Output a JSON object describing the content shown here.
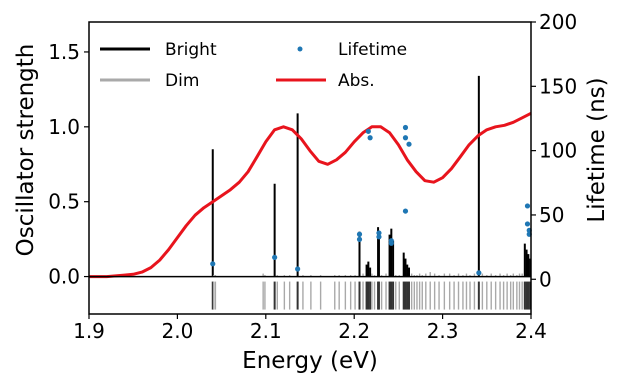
{
  "chart_data": {
    "type": "line",
    "xlabel": "Energy (eV)",
    "ylabel_left": "Oscillator strength",
    "ylabel_right": "Lifetime (ns)",
    "xlim": [
      1.9,
      2.4
    ],
    "ylim_left": [
      -0.25,
      1.7
    ],
    "ylim_right": [
      -27,
      200
    ],
    "xticks": [
      "1.9",
      "2.0",
      "2.1",
      "2.2",
      "2.3",
      "2.4"
    ],
    "yticks_left": [
      "0.0",
      "0.5",
      "1.0",
      "1.5"
    ],
    "yticks_right": [
      "0",
      "50",
      "100",
      "150",
      "200"
    ],
    "grid": false,
    "legend_position": "top-left",
    "legend": {
      "bright": "Bright",
      "dim": "Dim",
      "lifetime": "Lifetime",
      "abs": "Abs."
    },
    "colors": {
      "bright": "#000000",
      "dim": "#a9a9a9",
      "lifetime": "#1f77b4",
      "abs": "#e8141d"
    },
    "series": [
      {
        "name": "Bright",
        "kind": "stick",
        "x": [
          2.04,
          2.11,
          2.136,
          2.206,
          2.214,
          2.216,
          2.218,
          2.227,
          2.228,
          2.24,
          2.242,
          2.244,
          2.256,
          2.258,
          2.26,
          2.262,
          2.341,
          2.393,
          2.395,
          2.397,
          2.399
        ],
        "y": [
          0.85,
          0.62,
          1.09,
          0.3,
          0.08,
          0.1,
          0.06,
          0.33,
          0.28,
          0.28,
          0.32,
          0.24,
          0.16,
          0.12,
          0.08,
          0.06,
          1.34,
          0.22,
          0.18,
          0.15,
          0.12
        ]
      },
      {
        "name": "Dim",
        "kind": "stick",
        "x": [
          2.041,
          2.043,
          2.097,
          2.099,
          2.113,
          2.121,
          2.127,
          2.142,
          2.151,
          2.162,
          2.178,
          2.183,
          2.19,
          2.196,
          2.201,
          2.21,
          2.22,
          2.223,
          2.231,
          2.236,
          2.247,
          2.251,
          2.265,
          2.268,
          2.271,
          2.274,
          2.277,
          2.281,
          2.286,
          2.291,
          2.296,
          2.302,
          2.308,
          2.313,
          2.318,
          2.323,
          2.327,
          2.331,
          2.336,
          2.345,
          2.35,
          2.355,
          2.36,
          2.365,
          2.369,
          2.373,
          2.377,
          2.38,
          2.384,
          2.387,
          2.39
        ],
        "y": [
          0.01,
          0.01,
          0.02,
          0.01,
          0.01,
          0.01,
          0.01,
          0.01,
          0.01,
          0.01,
          0.01,
          0.01,
          0.01,
          0.01,
          0.01,
          0.02,
          0.02,
          0.01,
          0.01,
          0.02,
          0.01,
          0.01,
          0.02,
          0.01,
          0.01,
          0.02,
          0.01,
          0.02,
          0.03,
          0.02,
          0.01,
          0.02,
          0.02,
          0.01,
          0.02,
          0.01,
          0.02,
          0.01,
          0.02,
          0.02,
          0.01,
          0.02,
          0.01,
          0.02,
          0.01,
          0.02,
          0.01,
          0.02,
          0.01,
          0.02,
          0.02
        ]
      },
      {
        "name": "Lifetime",
        "kind": "scatter",
        "axis": "right",
        "x": [
          2.04,
          2.11,
          2.136,
          2.206,
          2.206,
          2.216,
          2.218,
          2.228,
          2.228,
          2.242,
          2.242,
          2.258,
          2.258,
          2.258,
          2.262,
          2.341,
          2.396,
          2.396,
          2.398,
          2.398
        ],
        "y": [
          12,
          17,
          8,
          35,
          31,
          115,
          110,
          36,
          33,
          30,
          28,
          118,
          110,
          53,
          105,
          5,
          57,
          43,
          35,
          38
        ]
      },
      {
        "name": "Abs.",
        "kind": "line",
        "x": [
          1.9,
          1.92,
          1.94,
          1.95,
          1.96,
          1.97,
          1.98,
          1.99,
          2.0,
          2.01,
          2.02,
          2.03,
          2.04,
          2.05,
          2.06,
          2.07,
          2.08,
          2.09,
          2.1,
          2.11,
          2.12,
          2.13,
          2.14,
          2.15,
          2.16,
          2.17,
          2.18,
          2.19,
          2.2,
          2.21,
          2.22,
          2.23,
          2.24,
          2.25,
          2.26,
          2.27,
          2.28,
          2.29,
          2.3,
          2.31,
          2.32,
          2.33,
          2.34,
          2.35,
          2.36,
          2.37,
          2.38,
          2.39,
          2.4
        ],
        "y": [
          0.0,
          0.0,
          0.01,
          0.015,
          0.03,
          0.06,
          0.11,
          0.18,
          0.26,
          0.34,
          0.41,
          0.46,
          0.5,
          0.54,
          0.58,
          0.63,
          0.7,
          0.8,
          0.9,
          0.98,
          1.0,
          0.98,
          0.92,
          0.84,
          0.77,
          0.75,
          0.78,
          0.83,
          0.9,
          0.96,
          1.0,
          1.0,
          0.96,
          0.88,
          0.78,
          0.7,
          0.64,
          0.63,
          0.66,
          0.72,
          0.8,
          0.88,
          0.94,
          0.98,
          1.0,
          1.01,
          1.03,
          1.06,
          1.09
        ]
      }
    ]
  }
}
